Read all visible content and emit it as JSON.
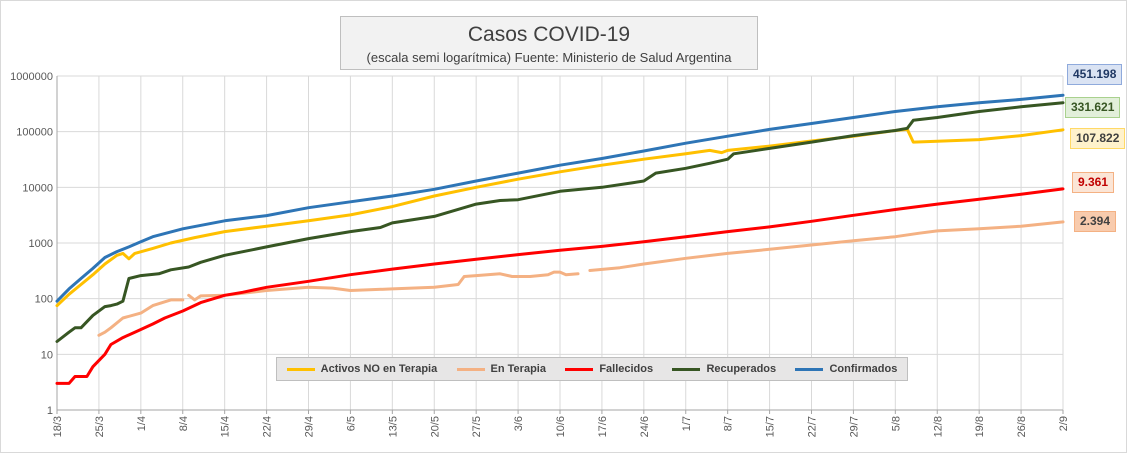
{
  "chart_data": {
    "type": "line",
    "title": "Casos COVID-19",
    "subtitle": "(escala semi logarítmica) Fuente: Ministerio de Salud Argentina",
    "y_scale": "log",
    "ylim": [
      1,
      1000000
    ],
    "y_ticks": [
      "1",
      "10",
      "100",
      "1000",
      "10000",
      "100000",
      "1000000"
    ],
    "x_ticks": [
      "18/3",
      "25/3",
      "1/4",
      "8/4",
      "15/4",
      "22/4",
      "29/4",
      "6/5",
      "13/5",
      "20/5",
      "27/5",
      "3/6",
      "10/6",
      "17/6",
      "24/6",
      "1/7",
      "8/7",
      "15/7",
      "22/7",
      "29/7",
      "5/8",
      "12/8",
      "19/8",
      "26/8",
      "2/9"
    ],
    "x_start": "18/3",
    "x_end": "2/9",
    "grid": true,
    "legend_position": "bottom",
    "series": [
      {
        "name": "Activos NO en Terapia",
        "color": "#ffc000",
        "end_label": "107.822",
        "points": [
          [
            "18/3",
            75
          ],
          [
            "20/3",
            120
          ],
          [
            "22/3",
            180
          ],
          [
            "24/3",
            270
          ],
          [
            "26/3",
            420
          ],
          [
            "28/3",
            600
          ],
          [
            "29/3",
            650
          ],
          [
            "30/3",
            520
          ],
          [
            "31/3",
            650
          ],
          [
            "3/4",
            800
          ],
          [
            "6/4",
            1000
          ],
          [
            "10/4",
            1250
          ],
          [
            "15/4",
            1600
          ],
          [
            "22/4",
            2000
          ],
          [
            "29/4",
            2500
          ],
          [
            "6/5",
            3200
          ],
          [
            "13/5",
            4500
          ],
          [
            "20/5",
            7000
          ],
          [
            "27/5",
            10000
          ],
          [
            "3/6",
            14000
          ],
          [
            "10/6",
            19000
          ],
          [
            "17/6",
            25000
          ],
          [
            "24/6",
            32000
          ],
          [
            "1/7",
            40000
          ],
          [
            "5/7",
            46000
          ],
          [
            "7/7",
            42000
          ],
          [
            "8/7",
            46000
          ],
          [
            "15/7",
            55000
          ],
          [
            "22/7",
            68000
          ],
          [
            "29/7",
            83000
          ],
          [
            "5/8",
            105000
          ],
          [
            "7/8",
            110000
          ],
          [
            "8/8",
            65000
          ],
          [
            "12/8",
            67000
          ],
          [
            "19/8",
            72000
          ],
          [
            "26/8",
            85000
          ],
          [
            "2/9",
            107822
          ]
        ]
      },
      {
        "name": "En Terapia",
        "color": "#f4b183",
        "end_label": "2.394",
        "points": [
          [
            "25/3",
            22
          ],
          [
            "26/3",
            25
          ],
          [
            "27/3",
            30
          ],
          [
            "29/3",
            45
          ],
          [
            "1/4",
            55
          ],
          [
            "3/4",
            75
          ],
          [
            "6/4",
            95
          ],
          [
            "8/4",
            95
          ]
        ],
        "points_2": [
          [
            "9/4",
            115
          ],
          [
            "10/4",
            95
          ],
          [
            "11/4",
            112
          ],
          [
            "15/4",
            115
          ],
          [
            "22/4",
            140
          ],
          [
            "29/4",
            160
          ],
          [
            "3/5",
            155
          ],
          [
            "6/5",
            140
          ],
          [
            "13/5",
            150
          ],
          [
            "20/5",
            160
          ],
          [
            "24/5",
            180
          ],
          [
            "25/5",
            250
          ],
          [
            "27/5",
            260
          ],
          [
            "31/5",
            280
          ],
          [
            "2/6",
            250
          ],
          [
            "5/6",
            250
          ],
          [
            "8/6",
            270
          ],
          [
            "9/6",
            300
          ],
          [
            "10/6",
            300
          ],
          [
            "11/6",
            270
          ],
          [
            "13/6",
            280
          ]
        ],
        "points_3": [
          [
            "15/6",
            320
          ],
          [
            "20/6",
            360
          ],
          [
            "24/6",
            420
          ],
          [
            "1/7",
            530
          ],
          [
            "8/7",
            650
          ],
          [
            "15/7",
            770
          ],
          [
            "22/7",
            920
          ],
          [
            "29/7",
            1100
          ],
          [
            "5/8",
            1300
          ],
          [
            "9/8",
            1500
          ],
          [
            "12/8",
            1650
          ],
          [
            "19/8",
            1800
          ],
          [
            "26/8",
            2000
          ],
          [
            "2/9",
            2394
          ]
        ]
      },
      {
        "name": "Fallecidos",
        "color": "#ff0000",
        "end_label": "9.361",
        "points": [
          [
            "18/3",
            3
          ],
          [
            "20/3",
            3
          ],
          [
            "21/3",
            4
          ],
          [
            "23/3",
            4
          ],
          [
            "24/3",
            6
          ],
          [
            "26/3",
            10
          ],
          [
            "27/3",
            15
          ],
          [
            "29/3",
            20
          ],
          [
            "31/3",
            25
          ],
          [
            "3/4",
            35
          ],
          [
            "5/4",
            45
          ],
          [
            "8/4",
            60
          ],
          [
            "11/4",
            85
          ],
          [
            "15/4",
            115
          ],
          [
            "18/4",
            130
          ],
          [
            "22/4",
            160
          ],
          [
            "29/4",
            205
          ],
          [
            "6/5",
            270
          ],
          [
            "13/5",
            340
          ],
          [
            "20/5",
            420
          ],
          [
            "27/5",
            510
          ],
          [
            "3/6",
            620
          ],
          [
            "10/6",
            740
          ],
          [
            "17/6",
            870
          ],
          [
            "24/6",
            1050
          ],
          [
            "1/7",
            1300
          ],
          [
            "8/7",
            1600
          ],
          [
            "15/7",
            1950
          ],
          [
            "22/7",
            2450
          ],
          [
            "29/7",
            3150
          ],
          [
            "5/8",
            4000
          ],
          [
            "12/8",
            5000
          ],
          [
            "19/8",
            6100
          ],
          [
            "26/8",
            7500
          ],
          [
            "2/9",
            9361
          ]
        ]
      },
      {
        "name": "Recuperados",
        "color": "#375623",
        "end_label": "331.621",
        "points": [
          [
            "18/3",
            17
          ],
          [
            "20/3",
            25
          ],
          [
            "21/3",
            30
          ],
          [
            "22/3",
            30
          ],
          [
            "24/3",
            50
          ],
          [
            "26/3",
            72
          ],
          [
            "27/3",
            75
          ],
          [
            "28/3",
            80
          ],
          [
            "29/3",
            90
          ],
          [
            "30/3",
            230
          ],
          [
            "1/4",
            260
          ],
          [
            "4/4",
            280
          ],
          [
            "6/4",
            330
          ],
          [
            "9/4",
            370
          ],
          [
            "11/4",
            450
          ],
          [
            "15/4",
            600
          ],
          [
            "22/4",
            850
          ],
          [
            "29/4",
            1200
          ],
          [
            "6/5",
            1600
          ],
          [
            "11/5",
            1900
          ],
          [
            "13/5",
            2300
          ],
          [
            "20/5",
            3000
          ],
          [
            "27/5",
            5000
          ],
          [
            "31/5",
            5800
          ],
          [
            "3/6",
            6000
          ],
          [
            "10/6",
            8500
          ],
          [
            "17/6",
            10000
          ],
          [
            "22/6",
            12000
          ],
          [
            "24/6",
            13000
          ],
          [
            "26/6",
            18000
          ],
          [
            "1/7",
            22000
          ],
          [
            "5/7",
            27000
          ],
          [
            "8/7",
            32000
          ],
          [
            "9/7",
            40000
          ],
          [
            "15/7",
            50000
          ],
          [
            "22/7",
            65000
          ],
          [
            "29/7",
            85000
          ],
          [
            "5/8",
            105000
          ],
          [
            "7/8",
            115000
          ],
          [
            "8/8",
            160000
          ],
          [
            "12/8",
            180000
          ],
          [
            "19/8",
            230000
          ],
          [
            "26/8",
            280000
          ],
          [
            "2/9",
            331621
          ]
        ]
      },
      {
        "name": "Confirmados",
        "color": "#2e75b6",
        "end_label": "451.198",
        "points": [
          [
            "18/3",
            90
          ],
          [
            "20/3",
            150
          ],
          [
            "22/3",
            230
          ],
          [
            "24/3",
            350
          ],
          [
            "26/3",
            550
          ],
          [
            "28/3",
            700
          ],
          [
            "30/3",
            850
          ],
          [
            "1/4",
            1050
          ],
          [
            "3/4",
            1300
          ],
          [
            "8/4",
            1800
          ],
          [
            "15/4",
            2500
          ],
          [
            "22/4",
            3100
          ],
          [
            "29/4",
            4300
          ],
          [
            "6/5",
            5500
          ],
          [
            "13/5",
            7000
          ],
          [
            "20/5",
            9200
          ],
          [
            "27/5",
            13000
          ],
          [
            "3/6",
            18000
          ],
          [
            "10/6",
            25000
          ],
          [
            "17/6",
            33000
          ],
          [
            "24/6",
            45000
          ],
          [
            "1/7",
            62000
          ],
          [
            "8/7",
            83000
          ],
          [
            "15/7",
            110000
          ],
          [
            "22/7",
            140000
          ],
          [
            "29/7",
            180000
          ],
          [
            "5/8",
            230000
          ],
          [
            "12/8",
            280000
          ],
          [
            "19/8",
            330000
          ],
          [
            "26/8",
            380000
          ],
          [
            "2/9",
            451198
          ]
        ]
      }
    ]
  }
}
